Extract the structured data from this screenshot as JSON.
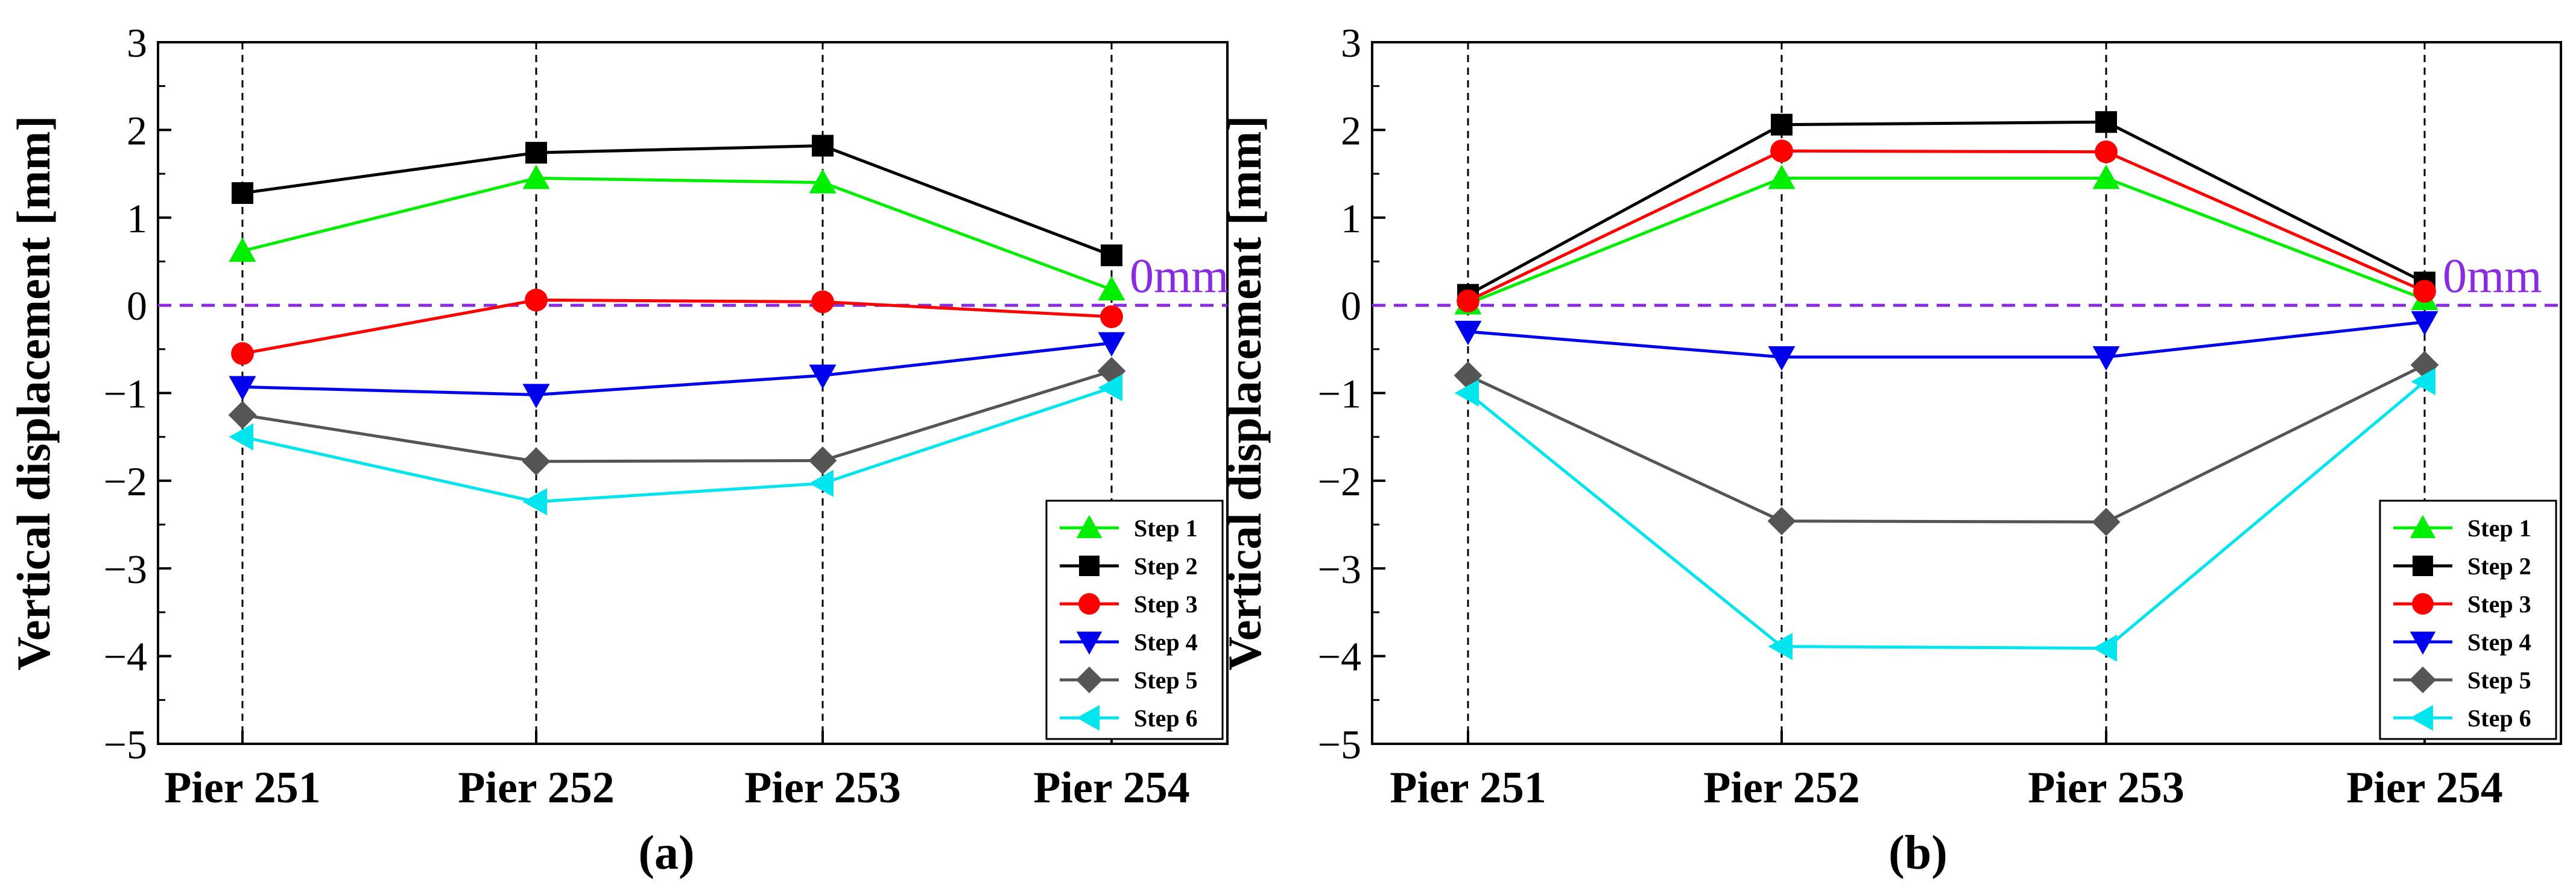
{
  "chart_data": [
    {
      "type": "line",
      "panel_label": "(a)",
      "ylabel": "Vertical displacement [mm]",
      "ylim": [
        -5,
        3
      ],
      "yticks": [
        3,
        2,
        1,
        0,
        -1,
        -2,
        -3,
        -4,
        -5
      ],
      "ytick_labels": [
        "3",
        "2",
        "1",
        "0",
        "−1",
        "−2",
        "−3",
        "−4",
        "−5"
      ],
      "categories": [
        "Pier 251",
        "Pier 252",
        "Pier 253",
        "Pier 254"
      ],
      "zero_label": "0mm",
      "legend_position": "bottom-right",
      "series": [
        {
          "name": "Step 1",
          "color": "#00ee00",
          "marker": "triangle-up",
          "values": [
            0.62,
            1.45,
            1.4,
            0.18
          ]
        },
        {
          "name": "Step 2",
          "color": "#000000",
          "marker": "square",
          "values": [
            1.28,
            1.74,
            1.82,
            0.57
          ]
        },
        {
          "name": "Step 3",
          "color": "#ff0000",
          "marker": "circle",
          "values": [
            -0.55,
            0.06,
            0.04,
            -0.13
          ]
        },
        {
          "name": "Step 4",
          "color": "#0000ee",
          "marker": "triangle-down",
          "values": [
            -0.93,
            -1.02,
            -0.8,
            -0.43
          ]
        },
        {
          "name": "Step 5",
          "color": "#555555",
          "marker": "diamond",
          "values": [
            -1.25,
            -1.78,
            -1.77,
            -0.75
          ]
        },
        {
          "name": "Step 6",
          "color": "#00e5ee",
          "marker": "triangle-left",
          "values": [
            -1.5,
            -2.24,
            -2.03,
            -0.94
          ]
        }
      ]
    },
    {
      "type": "line",
      "panel_label": "(b)",
      "ylabel": "Vertical displacement [mm]",
      "ylim": [
        -5,
        3
      ],
      "yticks": [
        3,
        2,
        1,
        0,
        -1,
        -2,
        -3,
        -4,
        -5
      ],
      "ytick_labels": [
        "3",
        "2",
        "1",
        "0",
        "−1",
        "−2",
        "−3",
        "−4",
        "−5"
      ],
      "categories": [
        "Pier 251",
        "Pier 252",
        "Pier 253",
        "Pier 254"
      ],
      "zero_label": "0mm",
      "legend_position": "bottom-right",
      "series": [
        {
          "name": "Step 1",
          "color": "#00ee00",
          "marker": "triangle-up",
          "values": [
            0.02,
            1.45,
            1.45,
            0.07
          ]
        },
        {
          "name": "Step 2",
          "color": "#000000",
          "marker": "square",
          "values": [
            0.12,
            2.06,
            2.09,
            0.26
          ]
        },
        {
          "name": "Step 3",
          "color": "#ff0000",
          "marker": "circle",
          "values": [
            0.05,
            1.76,
            1.75,
            0.16
          ]
        },
        {
          "name": "Step 4",
          "color": "#0000ee",
          "marker": "triangle-down",
          "values": [
            -0.3,
            -0.59,
            -0.59,
            -0.19
          ]
        },
        {
          "name": "Step 5",
          "color": "#555555",
          "marker": "diamond",
          "values": [
            -0.8,
            -2.46,
            -2.47,
            -0.68
          ]
        },
        {
          "name": "Step 6",
          "color": "#00e5ee",
          "marker": "triangle-left",
          "values": [
            -1.0,
            -3.89,
            -3.91,
            -0.87
          ]
        }
      ]
    }
  ]
}
